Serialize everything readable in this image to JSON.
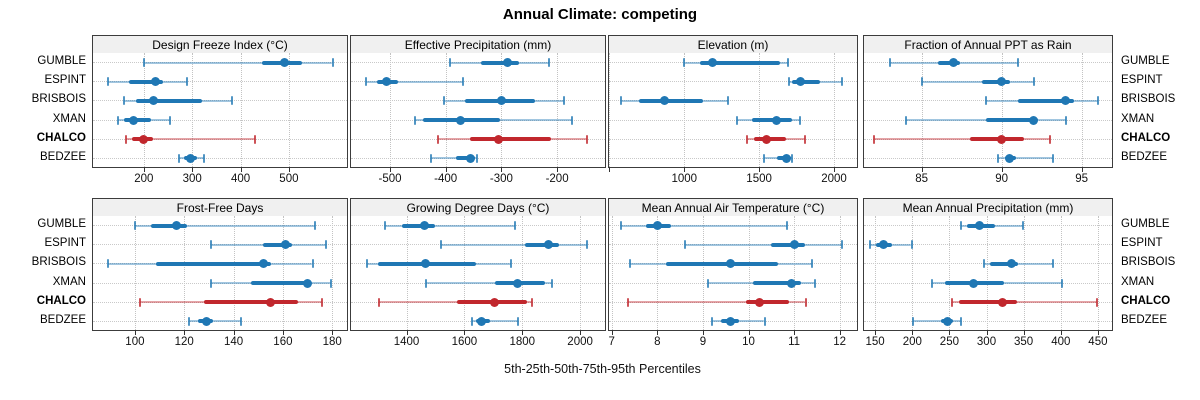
{
  "title": "Annual Climate: competing",
  "axis_caption": "5th-25th-50th-75th-95th Percentiles",
  "sites": [
    "GUMBLE",
    "ESPINT",
    "BRISBOIS",
    "XMAN",
    "CHALCO",
    "BEDZEE"
  ],
  "highlight_site": "CHALCO",
  "colors": {
    "blue_main": "#1f77b4",
    "blue_line": "rgba(31,119,180,0.42)",
    "blue_cap": "rgba(31,119,180,0.78)",
    "red_main": "#c1272d",
    "red_line": "rgba(193,39,45,0.42)",
    "red_cap": "rgba(193,39,45,0.8)",
    "grid": "#c3c3c3",
    "strip_bg": "#f0f0f0",
    "border": "#3c3c3c"
  },
  "chart_data": {
    "type": "interval-dotplot",
    "statistics": [
      "p5",
      "p25",
      "p50",
      "p75",
      "p95"
    ],
    "grid": {
      "rows": 2,
      "cols": 4
    },
    "legend_position": "none",
    "panels": [
      {
        "title": "Design Freeze Index (°C)",
        "ticks": [
          200,
          300,
          400,
          500
        ],
        "domain": [
          95,
          620
        ],
        "series": {
          "GUMBLE": [
            200,
            445,
            490,
            528,
            590
          ],
          "ESPINT": [
            126,
            170,
            224,
            240,
            290
          ],
          "BRISBOIS": [
            160,
            183,
            220,
            320,
            382
          ],
          "XMAN": [
            146,
            160,
            178,
            215,
            254
          ],
          "CHALCO": [
            163,
            175,
            199,
            220,
            430
          ],
          "BEDZEE": [
            272,
            284,
            297,
            310,
            324
          ]
        }
      },
      {
        "title": "Effective Precipitation (mm)",
        "ticks": [
          -500,
          -400,
          -300,
          -200
        ],
        "domain": [
          -570,
          -114
        ],
        "series": {
          "GUMBLE": [
            -392,
            -336,
            -290,
            -268,
            -215
          ],
          "ESPINT": [
            -543,
            -524,
            -507,
            -486,
            -369
          ],
          "BRISBOIS": [
            -404,
            -365,
            -300,
            -240,
            -188
          ],
          "XMAN": [
            -455,
            -440,
            -373,
            -302,
            -174
          ],
          "CHALCO": [
            -414,
            -357,
            -306,
            -210,
            -146
          ],
          "BEDZEE": [
            -426,
            -381,
            -356,
            -347,
            -344
          ]
        }
      },
      {
        "title": "Elevation (m)",
        "ticks": [
          1000,
          1500,
          2000
        ],
        "minor_ticks": [
          500
        ],
        "domain": [
          497,
          2154
        ],
        "series": {
          "GUMBLE": [
            1000,
            1105,
            1190,
            1640,
            1695
          ],
          "ESPINT": [
            1700,
            1722,
            1776,
            1910,
            2055
          ],
          "BRISBOIS": [
            578,
            700,
            868,
            1127,
            1292
          ],
          "XMAN": [
            1354,
            1450,
            1615,
            1720,
            1776
          ],
          "CHALCO": [
            1420,
            1468,
            1552,
            1677,
            1809
          ],
          "BEDZEE": [
            1530,
            1622,
            1684,
            1710,
            1721
          ]
        }
      },
      {
        "title": "Fraction of Annual PPT as Rain",
        "ticks": [
          85,
          90,
          95
        ],
        "domain": [
          81.4,
          96.9
        ],
        "series": {
          "GUMBLE": [
            83,
            86,
            87,
            87.4,
            91
          ],
          "ESPINT": [
            85,
            88.8,
            90,
            90.5,
            92
          ],
          "BRISBOIS": [
            89,
            91,
            94,
            94.5,
            96
          ],
          "XMAN": [
            84,
            89,
            92,
            92.3,
            94
          ],
          "CHALCO": [
            82,
            88,
            90,
            91.4,
            93
          ],
          "BEDZEE": [
            89.8,
            90.2,
            90.5,
            90.9,
            93.2
          ]
        }
      },
      {
        "title": "Frost-Free Days",
        "ticks": [
          100,
          120,
          140,
          160,
          180
        ],
        "domain": [
          83,
          186
        ],
        "series": {
          "GUMBLE": [
            100,
            106.5,
            117,
            121,
            173
          ],
          "ESPINT": [
            131,
            152,
            161,
            163.5,
            177.5
          ],
          "BRISBOIS": [
            89,
            108.5,
            152,
            155,
            172
          ],
          "XMAN": [
            131,
            147,
            170,
            171.5,
            179.5
          ],
          "CHALCO": [
            102,
            128,
            155,
            166,
            176
          ],
          "BEDZEE": [
            122,
            125.5,
            129,
            131.5,
            143
          ]
        }
      },
      {
        "title": "Growing Degree Days (°C)",
        "ticks": [
          1400,
          1600,
          1800,
          2000
        ],
        "domain": [
          1208,
          2086
        ],
        "series": {
          "GUMBLE": [
            1327,
            1385,
            1462,
            1498,
            1775
          ],
          "ESPINT": [
            1518,
            1809,
            1890,
            1928,
            2024
          ],
          "BRISBOIS": [
            1263,
            1300,
            1464,
            1640,
            1760
          ],
          "XMAN": [
            1468,
            1707,
            1784,
            1877,
            1902
          ],
          "CHALCO": [
            1306,
            1575,
            1705,
            1815,
            1835
          ],
          "BEDZEE": [
            1626,
            1640,
            1660,
            1687,
            1786
          ]
        }
      },
      {
        "title": "Mean Annual Air Temperature (°C)",
        "ticks": [
          7,
          8,
          9,
          10,
          11,
          12
        ],
        "domain": [
          6.94,
          12.38
        ],
        "series": {
          "GUMBLE": [
            7.2,
            7.75,
            8.0,
            8.3,
            10.85
          ],
          "ESPINT": [
            8.6,
            10.5,
            11.0,
            11.25,
            12.05
          ],
          "BRISBOIS": [
            7.4,
            8.2,
            9.6,
            10.65,
            11.4
          ],
          "XMAN": [
            9.1,
            10.1,
            10.95,
            11.15,
            11.45
          ],
          "CHALCO": [
            7.35,
            9.95,
            10.25,
            10.9,
            11.25
          ],
          "BEDZEE": [
            9.2,
            9.4,
            9.6,
            9.8,
            10.35
          ]
        }
      },
      {
        "title": "Mean Annual Precipitation (mm)",
        "ticks": [
          150,
          200,
          250,
          300,
          350,
          400,
          450
        ],
        "domain": [
          135,
          469
        ],
        "series": {
          "GUMBLE": [
            266,
            274,
            291,
            312,
            349
          ],
          "ESPINT": [
            143,
            151,
            161,
            173,
            199
          ],
          "BRISBOIS": [
            296,
            305,
            334,
            343,
            390
          ],
          "XMAN": [
            226,
            244,
            283,
            323,
            402
          ],
          "CHALCO": [
            253,
            263,
            321,
            341,
            449
          ],
          "BEDZEE": [
            201,
            238,
            248,
            255,
            265
          ]
        }
      }
    ]
  }
}
